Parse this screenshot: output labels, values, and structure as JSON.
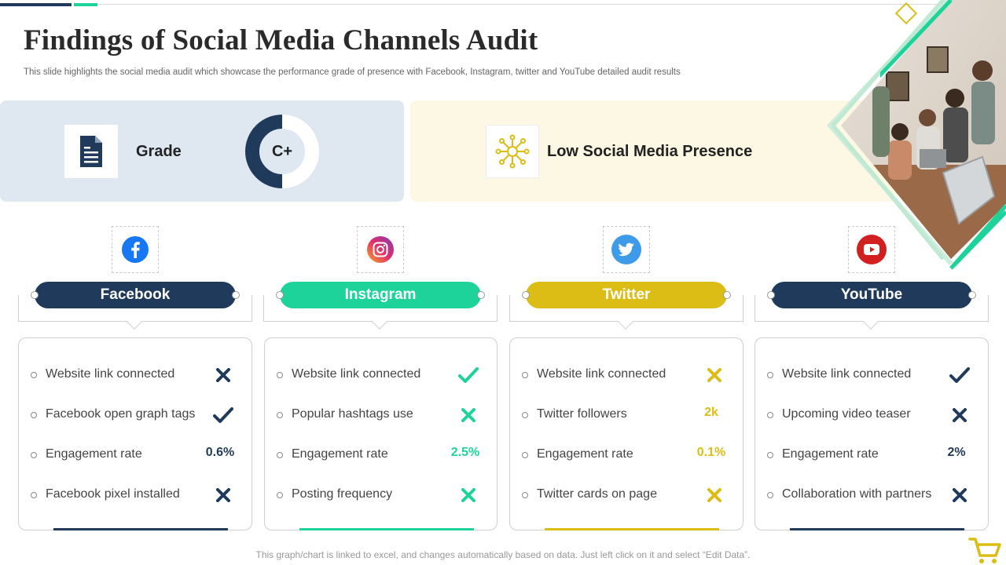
{
  "title": "Findings of Social Media Channels Audit",
  "subtitle": "This slide highlights the social media audit which showcase the performance grade of presence with Facebook, Instagram, twitter and YouTube detailed audit results",
  "grade": {
    "label": "Grade",
    "value": "C+",
    "icon": "document-icon",
    "ring_fill": 0.5
  },
  "presence": {
    "label": "Low Social Media Presence",
    "icon": "network-icon"
  },
  "colors": {
    "navy": "#1f3a5a",
    "green": "#1dd39a",
    "yellow": "#dcbd16",
    "grade_bg": "#dfe8f1",
    "presence_bg": "#fdf8e4"
  },
  "channels": [
    {
      "name": "Facebook",
      "icon": "facebook-icon",
      "color": "#1f3a5a",
      "rows": [
        {
          "label": "Website link connected",
          "kind": "cross"
        },
        {
          "label": "Facebook open graph tags",
          "kind": "check"
        },
        {
          "label": "Engagement rate",
          "kind": "text",
          "value": "0.6%"
        },
        {
          "label": "Facebook pixel installed",
          "kind": "cross"
        }
      ]
    },
    {
      "name": "Instagram",
      "icon": "instagram-icon",
      "color": "#1dd39a",
      "rows": [
        {
          "label": "Website link connected",
          "kind": "check"
        },
        {
          "label": "Popular hashtags use",
          "kind": "cross"
        },
        {
          "label": "Engagement rate",
          "kind": "text",
          "value": "2.5%"
        },
        {
          "label": "Posting frequency",
          "kind": "cross"
        }
      ]
    },
    {
      "name": "Twitter",
      "icon": "twitter-icon",
      "color": "#dcbd16",
      "rows": [
        {
          "label": "Website link connected",
          "kind": "cross"
        },
        {
          "label": "Twitter followers",
          "kind": "text",
          "value": "2k"
        },
        {
          "label": "Engagement rate",
          "kind": "text",
          "value": "0.1%"
        },
        {
          "label": "Twitter cards on page",
          "kind": "cross"
        }
      ]
    },
    {
      "name": "YouTube",
      "icon": "youtube-icon",
      "color": "#1f3a5a",
      "rows": [
        {
          "label": "Website link connected",
          "kind": "check"
        },
        {
          "label": "Upcoming video teaser",
          "kind": "cross"
        },
        {
          "label": "Engagement rate",
          "kind": "text",
          "value": "2%"
        },
        {
          "label": "Collaboration with partners",
          "kind": "cross"
        }
      ]
    }
  ],
  "footer": "This graph/chart is linked to excel, and changes automatically based on data. Just left click on it and select “Edit Data”."
}
